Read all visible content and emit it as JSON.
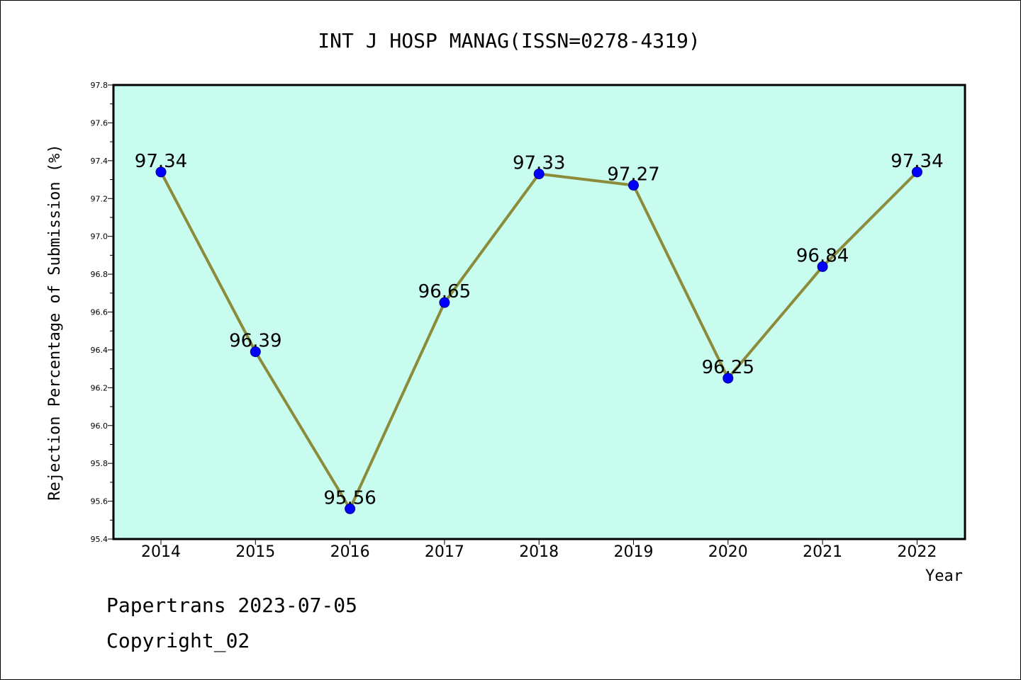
{
  "chart_data": {
    "type": "line",
    "title": "INT J HOSP MANAG(ISSN=0278-4319)",
    "xlabel": "Year",
    "ylabel": "Rejection Percentage of Submission (%)",
    "categories": [
      "2014",
      "2015",
      "2016",
      "2017",
      "2018",
      "2019",
      "2020",
      "2021",
      "2022"
    ],
    "series": [
      {
        "values": [
          97.34,
          96.39,
          95.56,
          96.65,
          97.33,
          97.27,
          96.25,
          96.84,
          97.34
        ],
        "data_labels": [
          "97.34",
          "96.39",
          "95.56",
          "96.65",
          "97.33",
          "97.27",
          "96.25",
          "96.84",
          "97.34"
        ]
      }
    ],
    "ylim": [
      95.4,
      97.8
    ],
    "yticks": [
      "95.4",
      "95.6",
      "95.8",
      "96.0",
      "96.2",
      "96.4",
      "96.6",
      "96.8",
      "97.0",
      "97.2",
      "97.4",
      "97.6",
      "97.8"
    ],
    "grid": false,
    "colors": {
      "plot_background": "#c8fcee",
      "line": "#8b8b3a",
      "marker": "#0000ff",
      "marker_edge": "#00008b"
    }
  },
  "footer": {
    "line1": "Papertrans 2023-07-05",
    "line2": "Copyright_02"
  }
}
